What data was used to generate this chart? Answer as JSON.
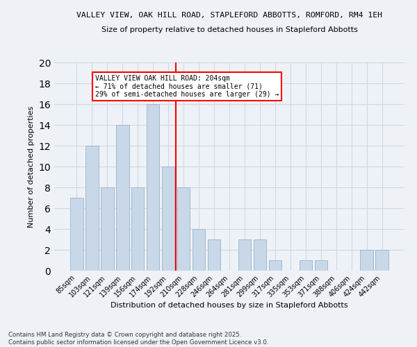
{
  "title1": "VALLEY VIEW, OAK HILL ROAD, STAPLEFORD ABBOTTS, ROMFORD, RM4 1EH",
  "title2": "Size of property relative to detached houses in Stapleford Abbotts",
  "xlabel": "Distribution of detached houses by size in Stapleford Abbotts",
  "ylabel": "Number of detached properties",
  "categories": [
    "85sqm",
    "103sqm",
    "121sqm",
    "139sqm",
    "156sqm",
    "174sqm",
    "192sqm",
    "210sqm",
    "228sqm",
    "246sqm",
    "264sqm",
    "281sqm",
    "299sqm",
    "317sqm",
    "335sqm",
    "353sqm",
    "371sqm",
    "388sqm",
    "406sqm",
    "424sqm",
    "442sqm"
  ],
  "values": [
    7,
    12,
    8,
    14,
    8,
    16,
    10,
    8,
    4,
    3,
    0,
    3,
    3,
    1,
    0,
    1,
    1,
    0,
    0,
    2,
    2
  ],
  "bar_color": "#c8d8e8",
  "bar_edge_color": "#a0b8d0",
  "grid_color": "#d0d8e0",
  "vline_x": 6.5,
  "vline_color": "red",
  "annotation_text": "VALLEY VIEW OAK HILL ROAD: 204sqm\n← 71% of detached houses are smaller (71)\n29% of semi-detached houses are larger (29) →",
  "annotation_box_color": "white",
  "annotation_box_edge": "red",
  "ylim": [
    0,
    20
  ],
  "yticks": [
    0,
    2,
    4,
    6,
    8,
    10,
    12,
    14,
    16,
    18,
    20
  ],
  "footer": "Contains HM Land Registry data © Crown copyright and database right 2025.\nContains public sector information licensed under the Open Government Licence v3.0.",
  "bg_color": "#eef2f7"
}
